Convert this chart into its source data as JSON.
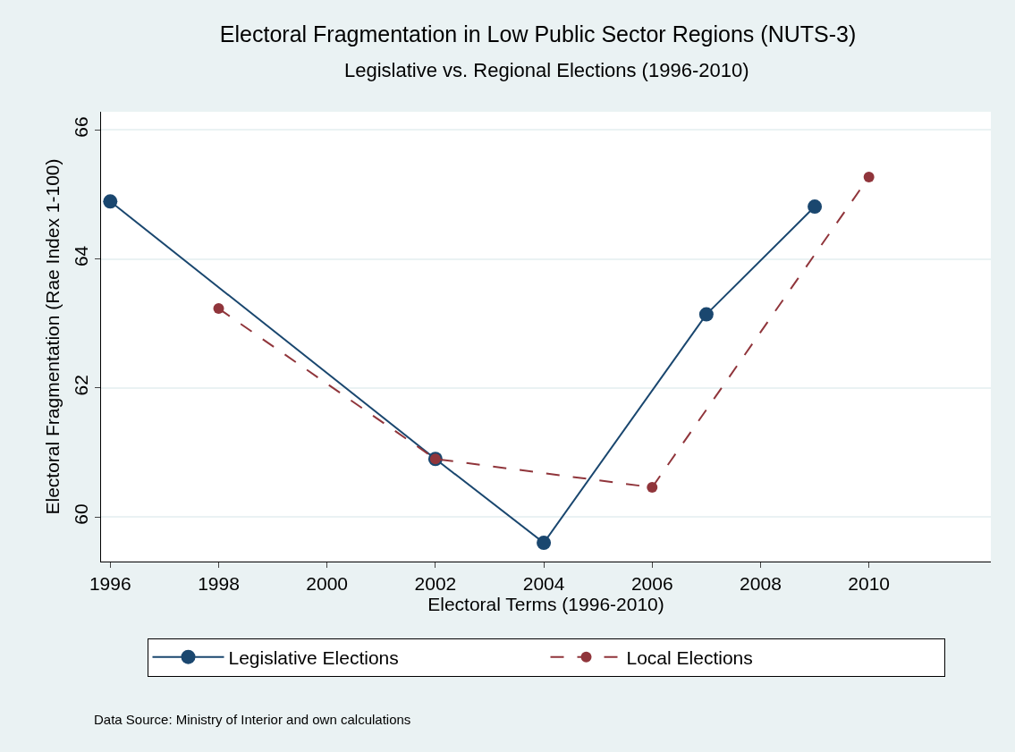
{
  "chart_data": {
    "type": "line",
    "title": "Electoral Fragmentation in Low Public Sector Regions (NUTS-3)",
    "subtitle": "Legislative vs. Regional Elections (1996-2010)",
    "xlabel": "Electoral Terms (1996-2010)",
    "ylabel": "Electoral Fragmentation (Rae Index 1-100)",
    "series": [
      {
        "name": "Legislative Elections",
        "color": "#1a476f",
        "x": [
          1996,
          2002,
          2004,
          2007,
          2009
        ],
        "values": [
          64.89,
          60.9,
          59.6,
          63.14,
          64.81
        ],
        "line_style": "solid"
      },
      {
        "name": "Local Elections",
        "color": "#90353b",
        "x": [
          1998,
          2002,
          2006,
          2010
        ],
        "values": [
          63.23,
          60.9,
          60.46,
          65.27
        ],
        "line_style": "dashed"
      }
    ],
    "xlim": [
      1995.83,
      2012.25
    ],
    "xticks": [
      1996,
      1998,
      2000,
      2002,
      2004,
      2006,
      2008,
      2010
    ],
    "ylim": [
      59.31,
      66.28
    ],
    "yticks": [
      60,
      62,
      64,
      66
    ],
    "grid": "y",
    "legend": "bottom",
    "marker": "circle",
    "annotations": [
      "Data Source: Ministry of Interior and own calculations"
    ]
  }
}
